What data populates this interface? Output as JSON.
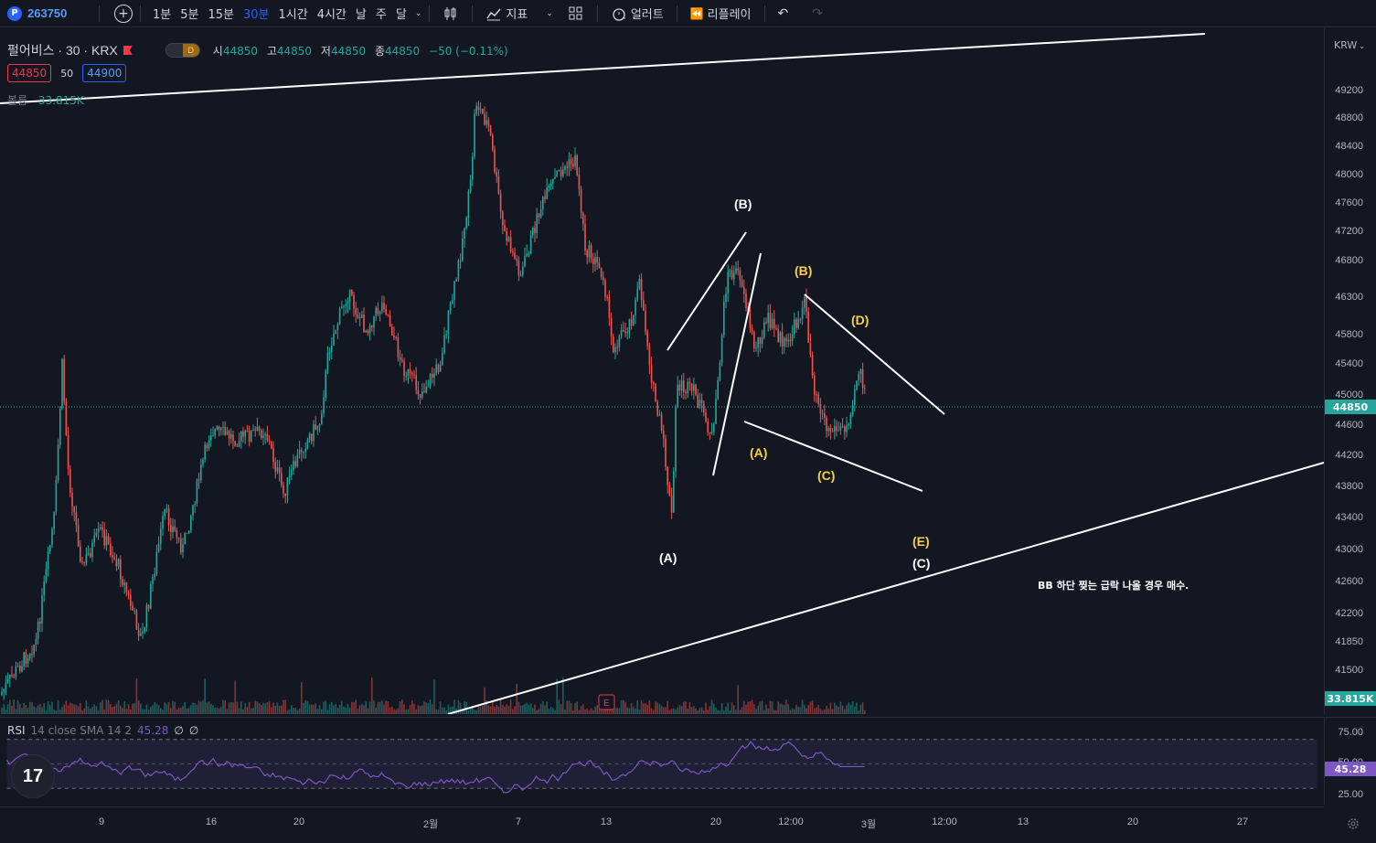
{
  "toolbar": {
    "symbol_badge": "P",
    "symbol": "263750",
    "intervals": [
      "1분",
      "5분",
      "15분",
      "30분",
      "1시간",
      "4시간",
      "날",
      "주",
      "달"
    ],
    "active_interval": "30분",
    "indicators_label": "지표",
    "alert_label": "얼러트",
    "replay_label": "리플레이"
  },
  "legend": {
    "title": "펄어비스 · 30 · KRX",
    "open_label": "시",
    "open": "44850",
    "high_label": "고",
    "high": "44850",
    "low_label": "저",
    "low": "44850",
    "close_label": "종",
    "close": "44850",
    "change": "−50 (−0.11%)",
    "bid": "44850",
    "spread": "50",
    "ask": "44900",
    "volume_label": "볼륨",
    "volume": "33.815K",
    "pill_left": "",
    "pill_right": "D"
  },
  "price_axis": {
    "currency": "KRW",
    "labels": [
      "49200",
      "48800",
      "48400",
      "48000",
      "47600",
      "47200",
      "46800",
      "46300",
      "45800",
      "45400",
      "45000",
      "44600",
      "44200",
      "43800",
      "43400",
      "43000",
      "42600",
      "42200",
      "41850",
      "41500"
    ],
    "last_price": "44850",
    "last_volume": "33.815K"
  },
  "annotations": {
    "white": [
      "(B)",
      "(A)",
      "(C)"
    ],
    "yellow": [
      "(B)",
      "(D)",
      "(A)",
      "(C)",
      "(E)"
    ],
    "note": "BB 하단 찢는 급락 나올 경우 매수."
  },
  "rsi": {
    "name": "RSI",
    "params": "14 close SMA 14 2",
    "value": "45.28",
    "extra1": "∅",
    "extra2": "∅",
    "levels": [
      "75.00",
      "50.00",
      "25.00"
    ],
    "last": "45.28"
  },
  "time_axis": {
    "labels": [
      "9",
      "16",
      "20",
      "2월",
      "7",
      "13",
      "20",
      "12:00",
      "3월",
      "12:00",
      "13",
      "20",
      "27"
    ]
  },
  "earnings_marker": "E",
  "colors": {
    "up": "#26a69a",
    "down": "#ef5350",
    "rsi": "#7e57c2",
    "accent": "#2962ff"
  },
  "logo": "17"
}
